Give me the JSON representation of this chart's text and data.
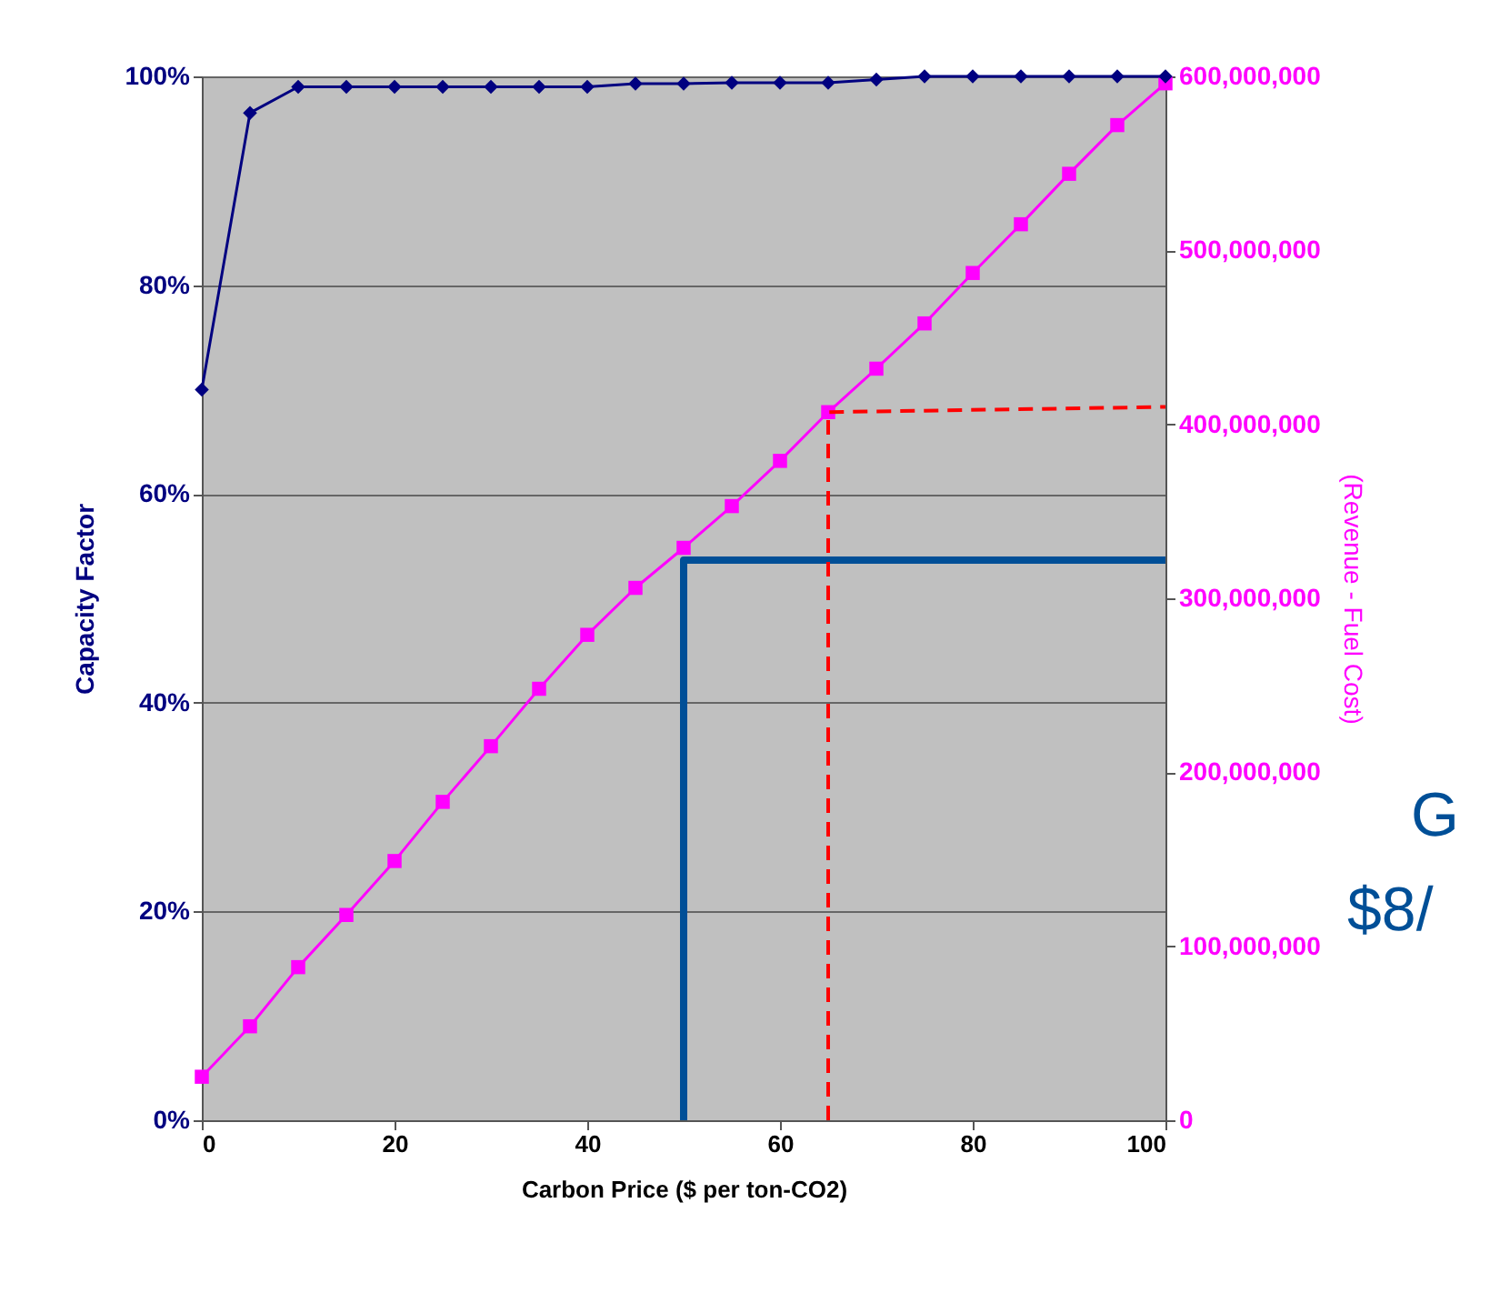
{
  "chart_data": {
    "type": "line",
    "xlabel": "Carbon Price ($ per ton-CO2)",
    "ylabel": "Capacity Factor",
    "y2label": "(Revenue - Fuel Cost)",
    "x": [
      0,
      5,
      10,
      15,
      20,
      25,
      30,
      35,
      40,
      45,
      50,
      55,
      60,
      65,
      70,
      75,
      80,
      85,
      90,
      95,
      100
    ],
    "xlim": [
      0,
      100
    ],
    "xticks": [
      0,
      20,
      40,
      60,
      80,
      100
    ],
    "ylim": [
      0,
      1
    ],
    "yticks": [
      {
        "value": 0,
        "label": "0%"
      },
      {
        "value": 0.2,
        "label": "20%"
      },
      {
        "value": 0.4,
        "label": "40%"
      },
      {
        "value": 0.6,
        "label": "60%"
      },
      {
        "value": 0.8,
        "label": "80%"
      },
      {
        "value": 1,
        "label": "100%"
      }
    ],
    "y2lim": [
      0,
      600000000
    ],
    "y2ticks": [
      {
        "value": 0,
        "label": "0"
      },
      {
        "value": 100000000,
        "label": "100,000,000"
      },
      {
        "value": 200000000,
        "label": "200,000,000"
      },
      {
        "value": 300000000,
        "label": "300,000,000"
      },
      {
        "value": 400000000,
        "label": "400,000,000"
      },
      {
        "value": 500000000,
        "label": "500,000,000"
      },
      {
        "value": 600000000,
        "label": "600,000,000"
      }
    ],
    "grid": "y",
    "series": [
      {
        "color": "#000080",
        "marker": "diamond",
        "values": [
          0.7,
          0.965,
          0.99,
          0.99,
          0.99,
          0.99,
          0.99,
          0.99,
          0.99,
          0.993,
          0.993,
          0.994,
          0.994,
          0.994,
          0.997,
          1,
          1,
          1,
          1,
          1,
          1
        ]
      },
      {
        "color": "#ff00ff",
        "marker": "square",
        "axis": "y2",
        "values": [
          25000000,
          54000000,
          88000000,
          118000000,
          149000000,
          183000000,
          215000000,
          248000000,
          279000000,
          306000000,
          329000000,
          353000000,
          379000000,
          407000000,
          432000000,
          458000000,
          487000000,
          515000000,
          544000000,
          572000000,
          596000000
        ]
      },
      {
        "color": "#004f97",
        "marker": "none",
        "axis": "y2",
        "x": [
          50,
          50,
          100
        ],
        "values": [
          0,
          322000000,
          322000000
        ]
      },
      {
        "color": "#ff0000",
        "marker": "none",
        "line_style": "dashed",
        "axis": "y2",
        "x": [
          65,
          65,
          100
        ],
        "values": [
          0,
          407000000,
          410000000
        ]
      }
    ],
    "annotations": [
      "G",
      "$8/"
    ]
  }
}
